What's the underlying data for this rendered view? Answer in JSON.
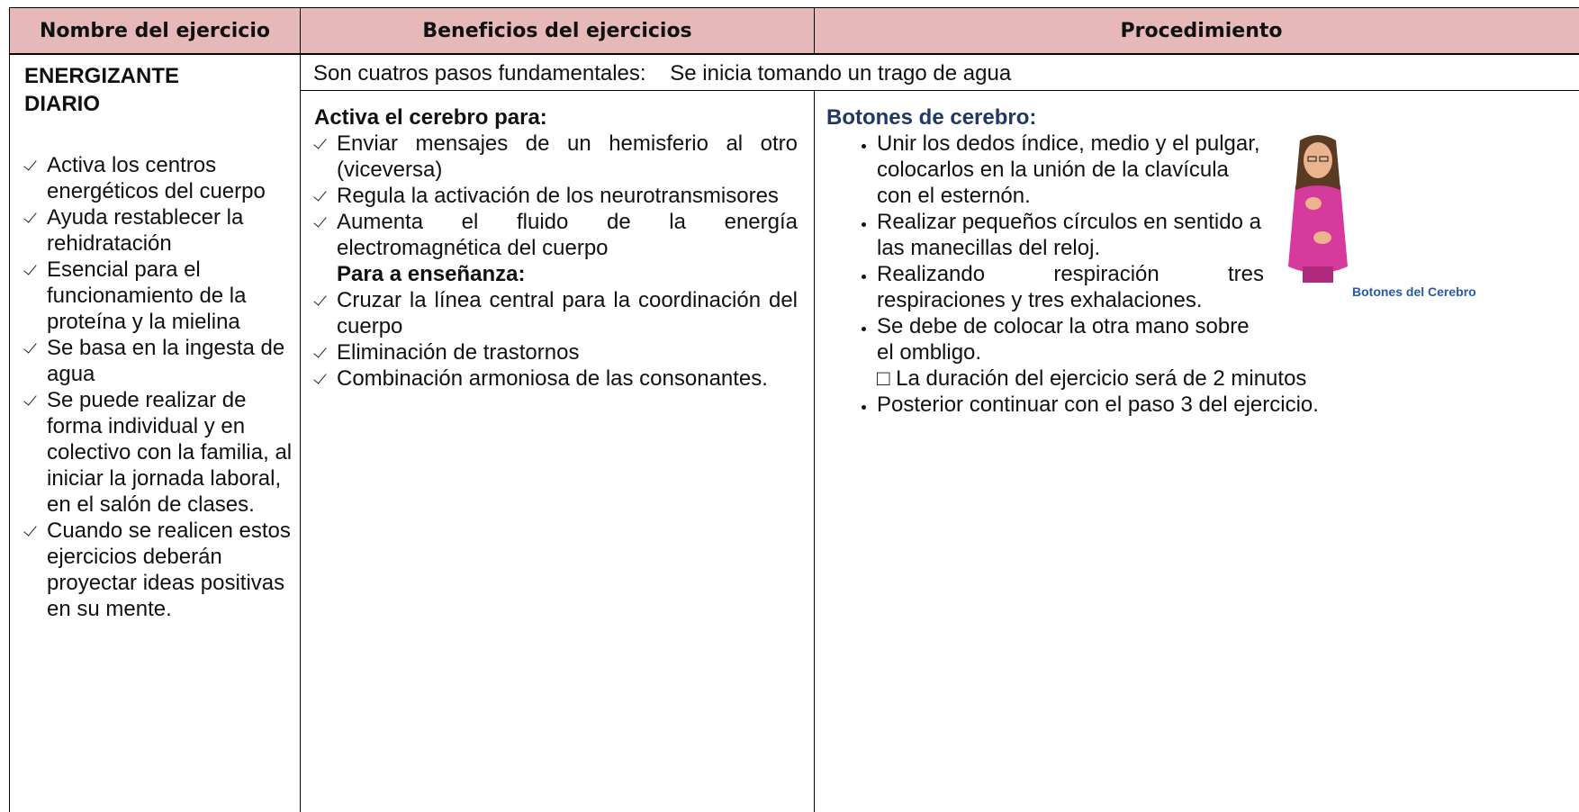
{
  "header": {
    "columns": [
      "Nombre del ejercicio",
      "Beneficios del ejercicios",
      "Procedimiento"
    ]
  },
  "exercise": {
    "name": "ENERGIZANTE DIARIO",
    "features": [
      "Activa los centros energéticos del cuerpo",
      "Ayuda restablecer la rehidratación",
      "Esencial para el funcionamiento de la proteína y la mielina",
      "Se basa en la ingesta de agua",
      "Se puede realizar de forma individual y en colectivo con la familia, al iniciar la jornada laboral, en el salón de clases.",
      "Cuando se realicen estos ejercicios deberán proyectar ideas positivas en su mente."
    ]
  },
  "intro": "Son cuatros pasos fundamentales:    Se inicia tomando un trago de agua",
  "benefits": {
    "heading1": "Activa el cerebro para:",
    "items1": [
      "Enviar mensajes de un hemisferio al otro (viceversa)",
      "Regula la activación de los neurotransmisores",
      "Aumenta el fluido de la energía electromagnética del cuerpo"
    ],
    "heading2": "Para a enseñanza:",
    "items2": [
      "Cruzar la línea central para la coordinación del cuerpo",
      "Eliminación de trastornos",
      "Combinación armoniosa de las consonantes."
    ]
  },
  "procedure": {
    "heading": "Botones de cerebro:",
    "steps": [
      "Unir los dedos índice, medio y el pulgar, colocarlos en la unión de la clavícula con el esternón.",
      "Realizar pequeños círculos en sentido a las manecillas del reloj.",
      "Realizando respiración tres respiraciones y tres exhalaciones.",
      "Se debe de colocar la otra mano sobre el ombligo."
    ],
    "note": "□ La duración del ejercicio será de 2 minutos",
    "final_step": "Posterior continuar con el paso 3 del ejercicio.",
    "image_caption": "Botones del Cerebro"
  }
}
